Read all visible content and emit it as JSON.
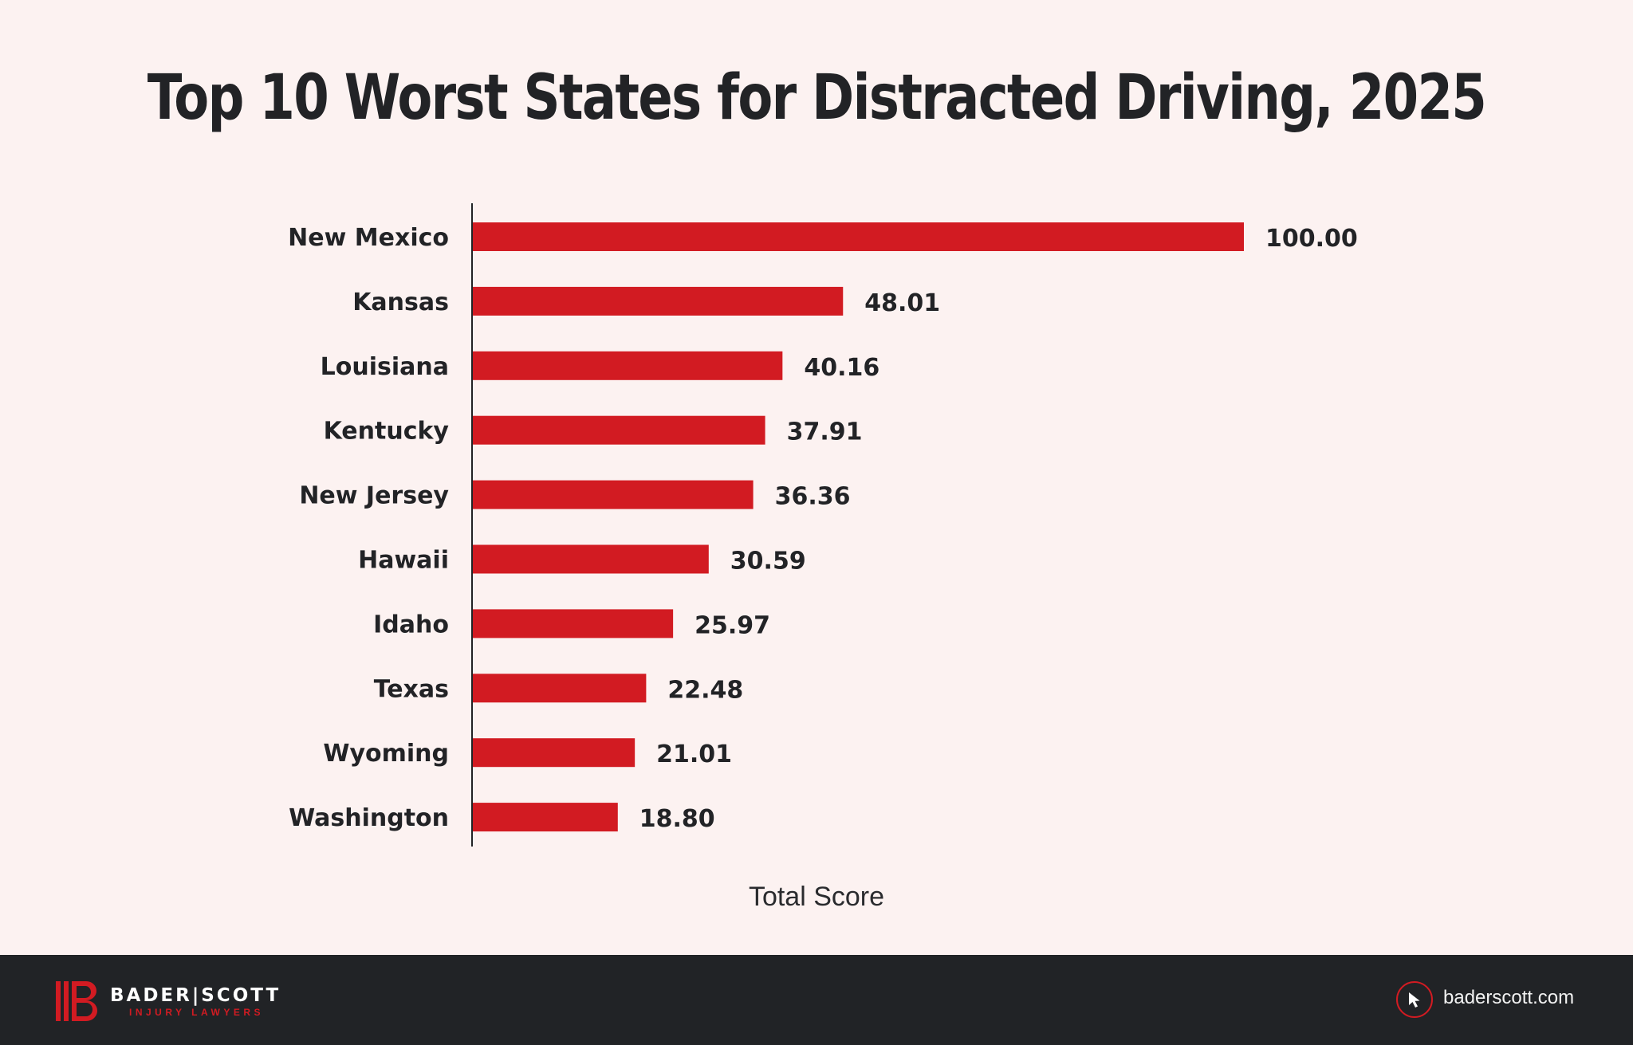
{
  "chart_data": {
    "type": "bar",
    "orientation": "horizontal",
    "title": "Top 10 Worst States for Distracted Driving, 2025",
    "xlabel": "Total Score",
    "ylabel": "",
    "categories": [
      "New Mexico",
      "Kansas",
      "Louisiana",
      "Kentucky",
      "New Jersey",
      "Hawaii",
      "Idaho",
      "Texas",
      "Wyoming",
      "Washington"
    ],
    "values": [
      100.0,
      48.01,
      40.16,
      37.91,
      36.36,
      30.59,
      25.97,
      22.48,
      21.01,
      18.8
    ],
    "value_labels": [
      "100.00",
      "48.01",
      "40.16",
      "37.91",
      "36.36",
      "30.59",
      "25.97",
      "22.48",
      "21.01",
      "18.80"
    ],
    "xlim": [
      0,
      100
    ],
    "grid": false,
    "legend": "none",
    "bar_color": "#d21b22"
  },
  "footer": {
    "brand": "BADER|SCOTT",
    "brand_sub": "INJURY LAWYERS",
    "website": "baderscott.com",
    "icon": "cursor-click-icon"
  },
  "colors": {
    "background": "#fcf2f1",
    "footer_bg": "#212326",
    "accent": "#d21b22",
    "text": "#222326"
  }
}
